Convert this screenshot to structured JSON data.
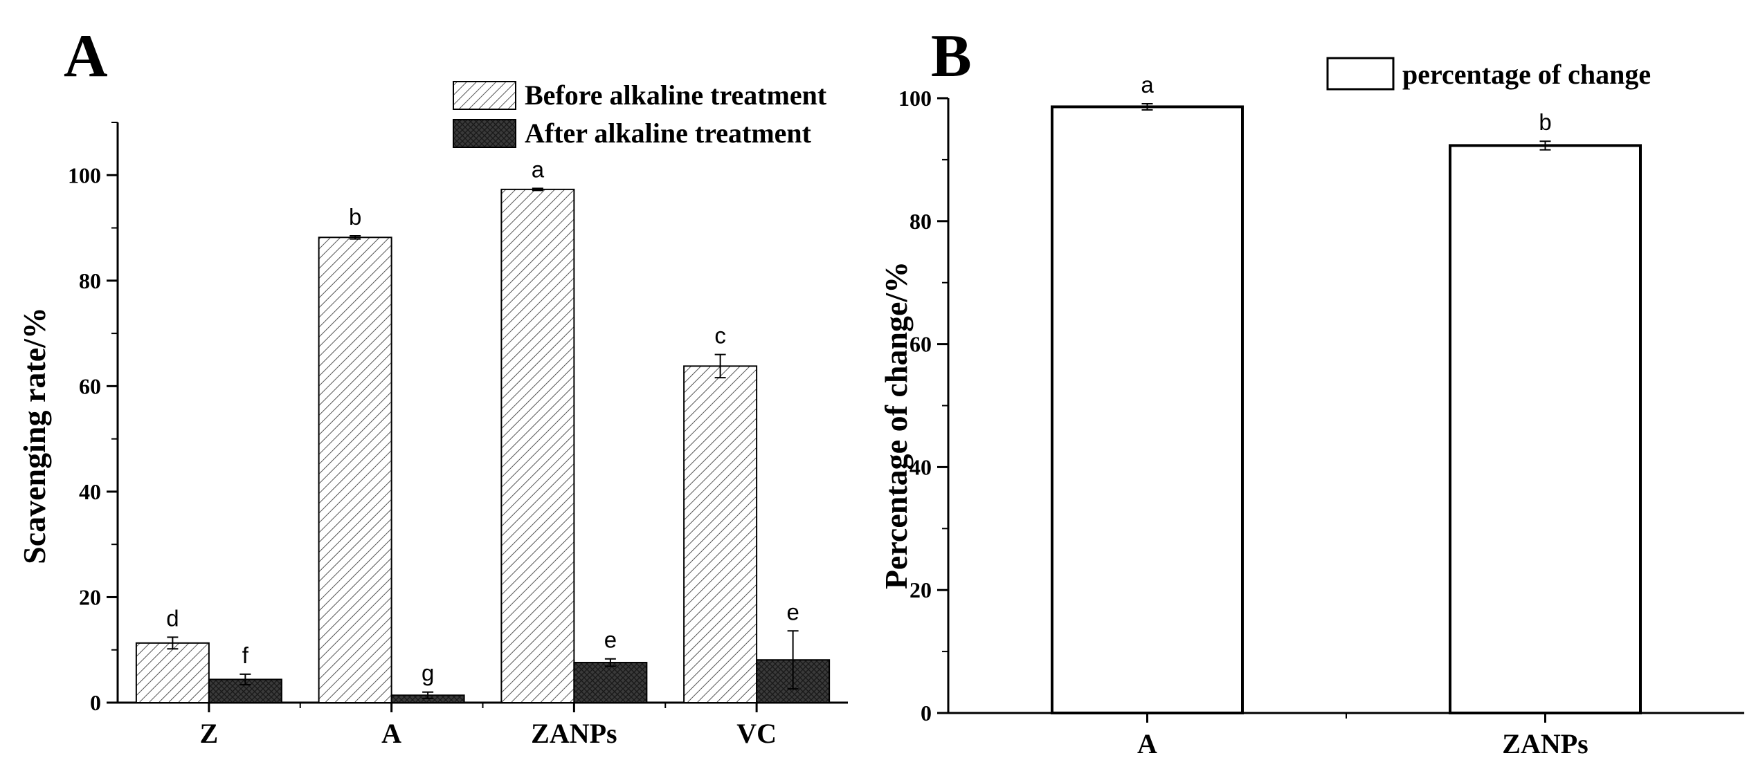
{
  "colors": {
    "axis": "#000000",
    "hatch_light": "#555555",
    "dark_fill": "#3a3a3a",
    "bar_B_fill": "#ffffff"
  },
  "chart_data": [
    {
      "panel": "A",
      "type": "bar",
      "ylabel": "Scavenging rate/%",
      "xlabel": "",
      "ylim": [
        0,
        110
      ],
      "yticks": [
        0,
        20,
        40,
        60,
        80,
        100
      ],
      "categories": [
        "Z",
        "A",
        "ZANPs",
        "VC"
      ],
      "legend_position": "top-right",
      "series": [
        {
          "name": "Before alkaline treatment",
          "pattern": "diagonal-hatch",
          "values": [
            11.3,
            88.2,
            97.3,
            63.8
          ],
          "errors": [
            1.1,
            0.3,
            0.2,
            2.2
          ],
          "letters": [
            "d",
            "b",
            "a",
            "c"
          ]
        },
        {
          "name": "After alkaline treatment",
          "pattern": "dark-crosshatch",
          "values": [
            4.4,
            1.4,
            7.6,
            8.1
          ],
          "errors": [
            1.0,
            0.6,
            0.7,
            5.5
          ],
          "letters": [
            "f",
            "g",
            "e",
            "e"
          ]
        }
      ]
    },
    {
      "panel": "B",
      "type": "bar",
      "ylabel": "Percentage of change/%",
      "xlabel": "",
      "ylim": [
        0,
        100
      ],
      "yticks": [
        0,
        20,
        40,
        60,
        80,
        100
      ],
      "categories": [
        "A",
        "ZANPs"
      ],
      "legend_position": "top-right",
      "series": [
        {
          "name": "percentage of change",
          "pattern": "white",
          "values": [
            98.6,
            92.3
          ],
          "errors": [
            0.5,
            0.7
          ],
          "letters": [
            "a",
            "b"
          ]
        }
      ]
    }
  ]
}
